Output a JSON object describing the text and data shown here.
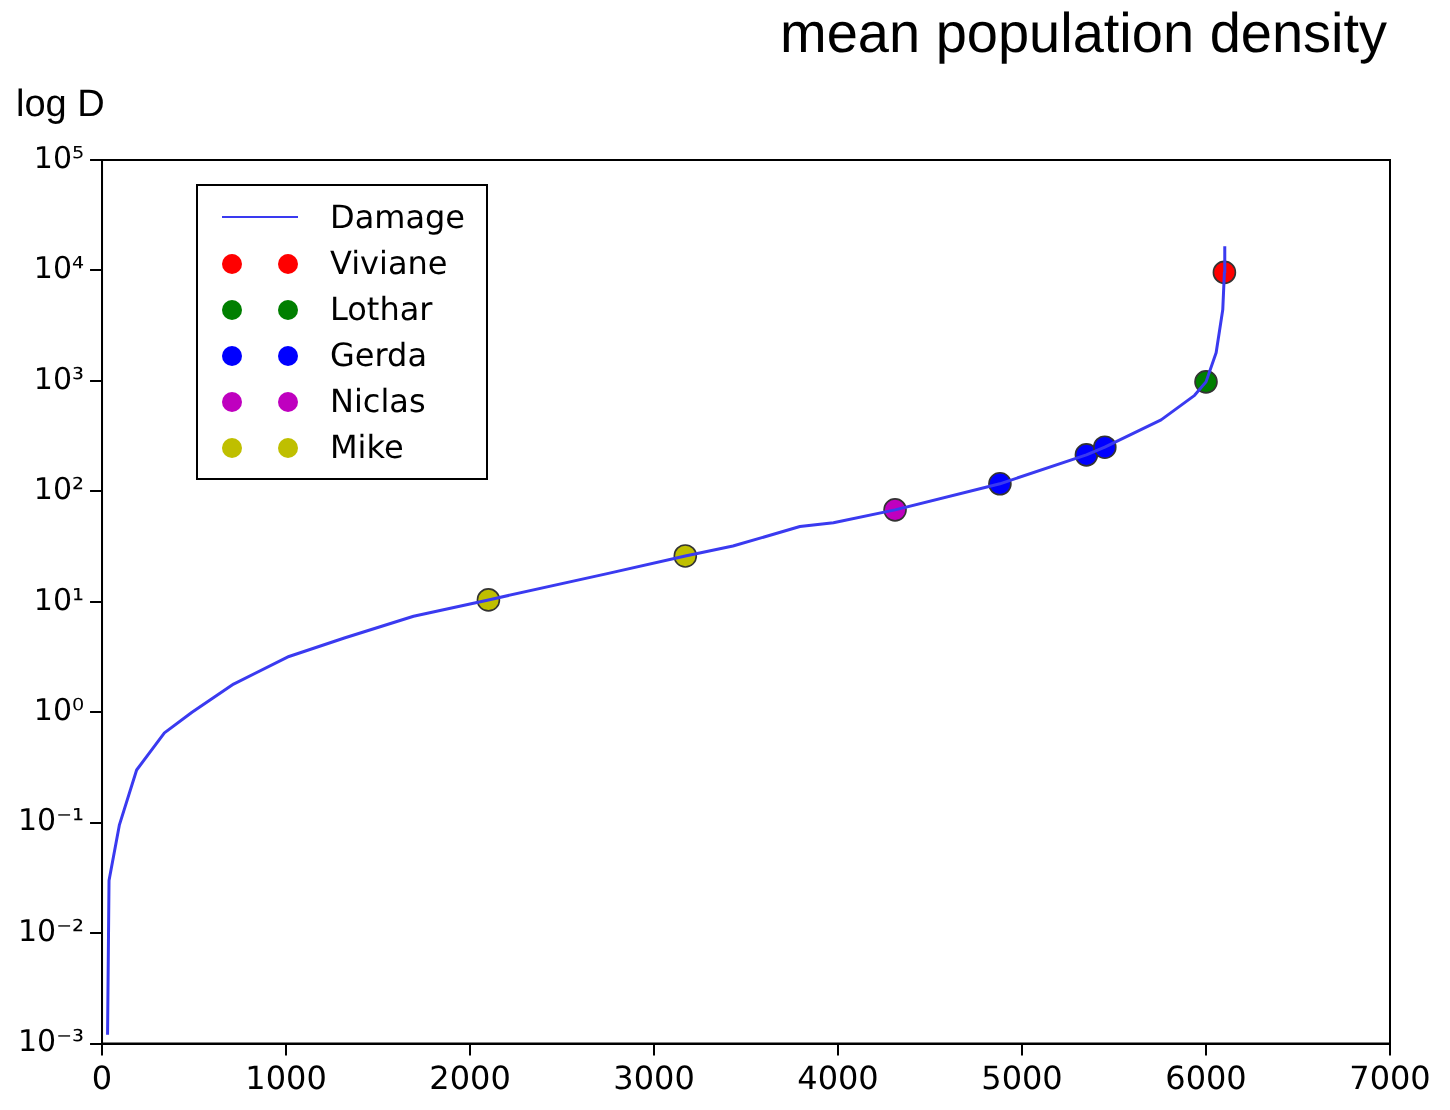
{
  "chart_data": {
    "type": "line",
    "title": "mean population density",
    "ylabel": "log D",
    "log": "y",
    "grid": false,
    "legend": "top left",
    "xlim": [
      0,
      7000
    ],
    "xticks": [
      0,
      1000,
      2000,
      3000,
      4000,
      5000,
      6000,
      7000
    ],
    "ylim": [
      0.001,
      100000
    ],
    "yticks": [
      {
        "value": 0.001,
        "label": "10⁻³"
      },
      {
        "value": 0.01,
        "label": "10⁻²"
      },
      {
        "value": 0.1,
        "label": "10⁻¹"
      },
      {
        "value": 1,
        "label": "10⁰"
      },
      {
        "value": 10,
        "label": "10¹"
      },
      {
        "value": 100,
        "label": "10²"
      },
      {
        "value": 1000,
        "label": "10³"
      },
      {
        "value": 10000,
        "label": "10⁴"
      },
      {
        "value": 100000,
        "label": "10⁵"
      }
    ],
    "series": [
      {
        "name": "Damage",
        "type": "line",
        "color": "#3a3af0",
        "marker": "none",
        "line_style": "solid",
        "x": [
          30,
          38,
          94,
          188,
          339,
          489,
          715,
          1016,
          1317,
          1693,
          2100,
          2746,
          3170,
          3429,
          3793,
          3975,
          4310,
          4880,
          5350,
          5450,
          5756,
          5938,
          6000,
          6055,
          6091,
          6100,
          6102
        ],
        "values": [
          0.0012,
          0.03,
          0.095,
          0.3,
          0.65,
          1.0,
          1.8,
          3.2,
          4.7,
          7.4,
          10.4,
          18,
          26,
          32,
          48,
          52,
          68,
          117,
          214,
          251,
          444,
          740,
          980,
          1800,
          4400,
          9600,
          16600
        ]
      },
      {
        "name": "Viviane",
        "type": "scatter",
        "color": "#ff0000",
        "marker": "circle",
        "x": [
          6100
        ],
        "values": [
          9600
        ]
      },
      {
        "name": "Lothar",
        "type": "scatter",
        "color": "#007f00",
        "marker": "circle",
        "x": [
          6000
        ],
        "values": [
          980
        ]
      },
      {
        "name": "Gerda",
        "type": "scatter",
        "color": "#0000ff",
        "marker": "circle",
        "x": [
          4880,
          5350,
          5450
        ],
        "values": [
          117,
          214,
          251
        ]
      },
      {
        "name": "Niclas",
        "type": "scatter",
        "color": "#bf00bf",
        "marker": "circle",
        "x": [
          4310
        ],
        "values": [
          68
        ]
      },
      {
        "name": "Mike",
        "type": "scatter",
        "color": "#bfbf00",
        "marker": "circle",
        "x": [
          2100,
          3170
        ],
        "values": [
          10.4,
          26
        ]
      }
    ]
  }
}
